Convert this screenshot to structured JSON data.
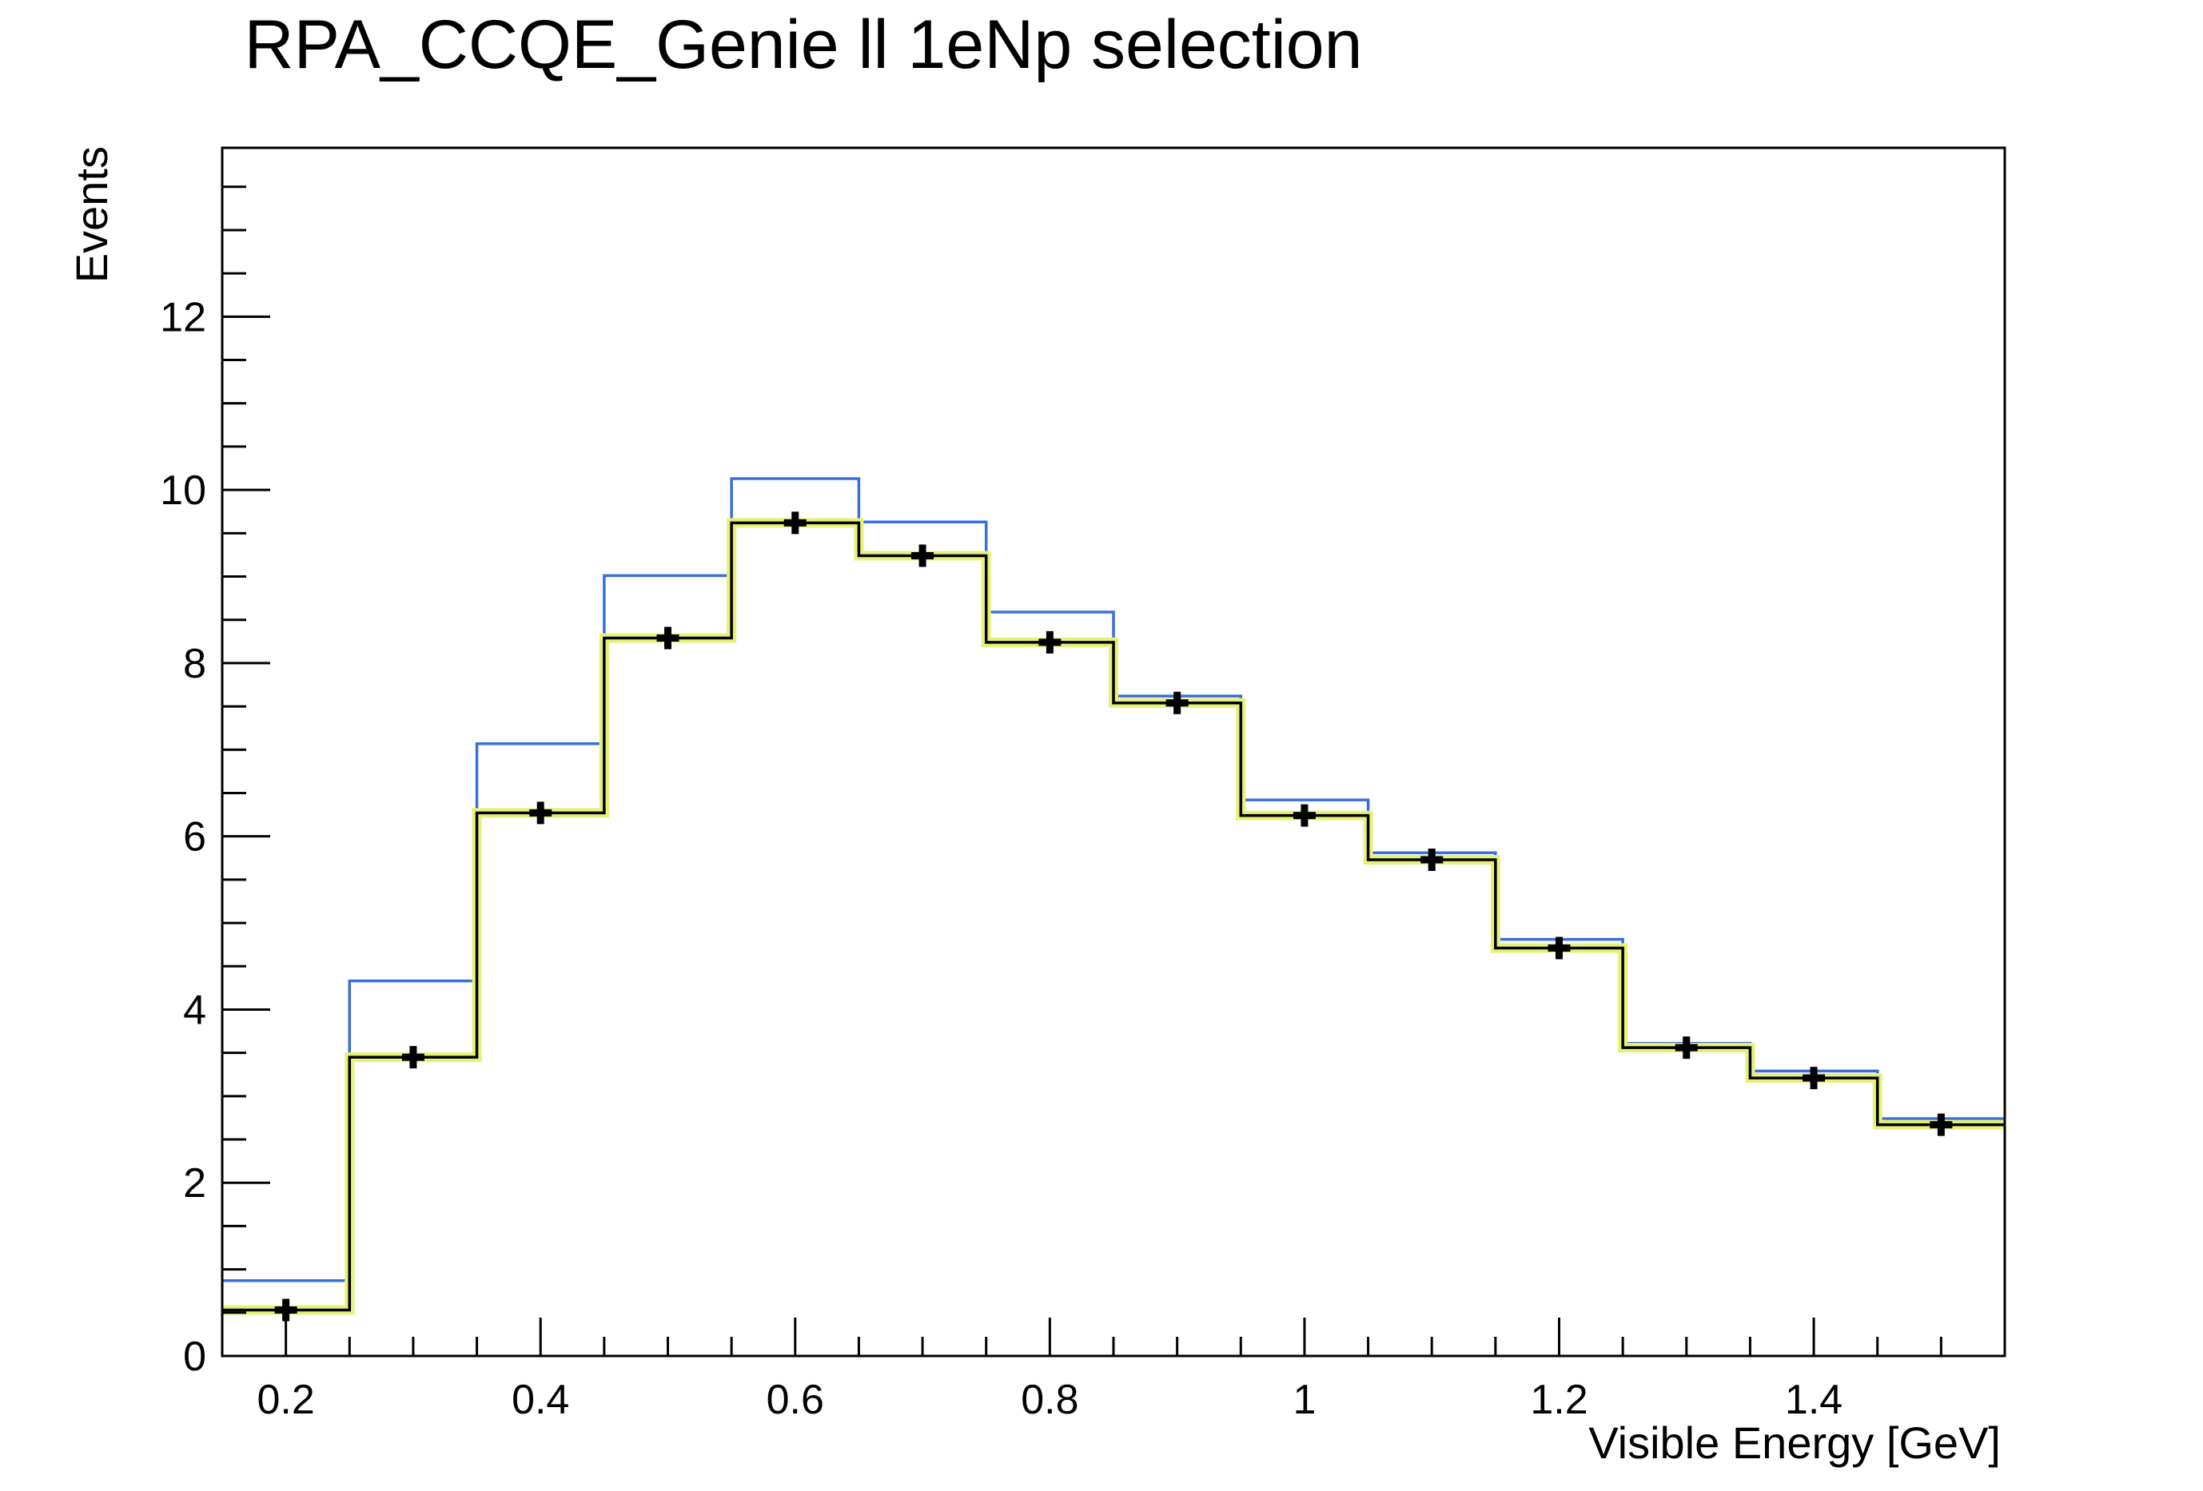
{
  "chart_data": {
    "type": "histogram",
    "title": "RPA_CCQE_Genie ll 1eNp selection",
    "xlabel": "Visible Energy [GeV]",
    "ylabel": "Events",
    "xlim": [
      0.15,
      1.55
    ],
    "ylim": [
      0,
      13.95
    ],
    "grid": false,
    "bin_edges": [
      0.15,
      0.25,
      0.35,
      0.45,
      0.55,
      0.65,
      0.75,
      0.85,
      0.95,
      1.05,
      1.15,
      1.25,
      1.35,
      1.45,
      1.55
    ],
    "x_ticks": [
      0.2,
      0.4,
      0.6,
      0.8,
      1.0,
      1.2,
      1.4
    ],
    "x_tick_labels": [
      "0.2",
      "0.4",
      "0.6",
      "0.8",
      "1",
      "1.2",
      "1.4"
    ],
    "y_ticks": [
      0,
      2,
      4,
      6,
      8,
      10,
      12
    ],
    "y_tick_labels": [
      "0",
      "2",
      "4",
      "6",
      "8",
      "10",
      "12"
    ],
    "series": [
      {
        "style": "step",
        "color": "#3a6fd8",
        "values": [
          0.87,
          4.33,
          7.07,
          9.01,
          10.13,
          9.63,
          8.59,
          7.62,
          6.42,
          5.81,
          4.81,
          3.61,
          3.29,
          2.74
        ]
      },
      {
        "style": "step-band",
        "color": "#000000",
        "band_color": "#e5f277",
        "values": [
          0.53,
          3.45,
          6.27,
          8.29,
          9.62,
          9.24,
          8.24,
          7.54,
          6.24,
          5.73,
          4.71,
          3.56,
          3.21,
          2.67
        ]
      },
      {
        "style": "points",
        "color": "#000000",
        "x": [
          0.2,
          0.3,
          0.4,
          0.5,
          0.6,
          0.7,
          0.8,
          0.9,
          1.0,
          1.1,
          1.2,
          1.3,
          1.4,
          1.5
        ],
        "values": [
          0.53,
          3.45,
          6.27,
          8.29,
          9.62,
          9.24,
          8.24,
          7.54,
          6.24,
          5.73,
          4.71,
          3.56,
          3.21,
          2.67
        ]
      }
    ]
  }
}
